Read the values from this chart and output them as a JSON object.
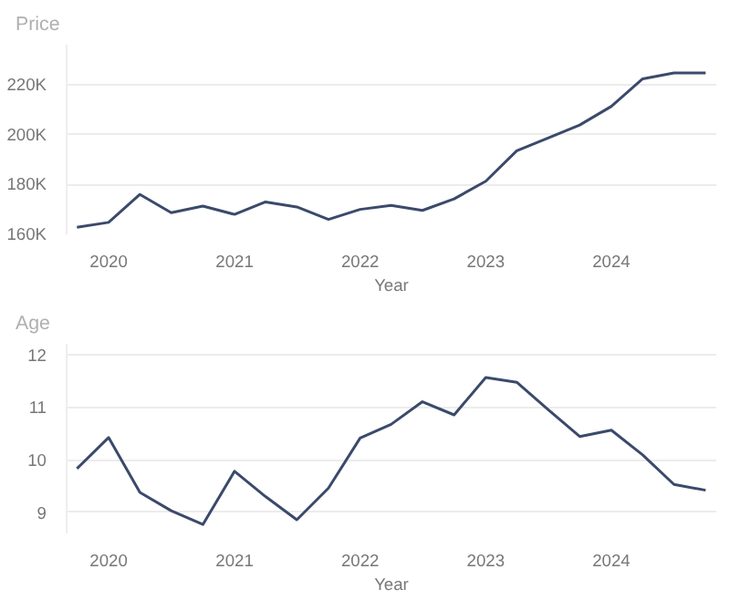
{
  "chart_data": [
    {
      "type": "line",
      "title": "Price",
      "xlabel": "Year",
      "x": [
        "2019-10",
        "2020-01",
        "2020-04",
        "2020-07",
        "2020-10",
        "2021-01",
        "2021-04",
        "2021-07",
        "2021-10",
        "2022-01",
        "2022-04",
        "2022-07",
        "2022-10",
        "2023-01",
        "2023-04",
        "2023-07",
        "2023-10",
        "2024-01",
        "2024-04",
        "2024-07",
        "2024-10"
      ],
      "series": [
        {
          "color": "#3b4a6b",
          "values": [
            162800,
            164800,
            176000,
            168700,
            171300,
            168000,
            173000,
            171000,
            166000,
            170000,
            171600,
            169600,
            174200,
            181300,
            193500,
            198600,
            203800,
            211300,
            222300,
            224700,
            224700
          ]
        }
      ],
      "xlim": [
        "2019-09",
        "2024-11"
      ],
      "xticks": [
        {
          "value": "2020-01",
          "label": "2020"
        },
        {
          "value": "2021-01",
          "label": "2021"
        },
        {
          "value": "2022-01",
          "label": "2022"
        },
        {
          "value": "2023-01",
          "label": "2023"
        },
        {
          "value": "2024-01",
          "label": "2024"
        }
      ],
      "ylim": [
        160000,
        236000
      ],
      "yticks": [
        {
          "value": 160000,
          "label": "160K"
        },
        {
          "value": 180000,
          "label": "180K"
        },
        {
          "value": 200000,
          "label": "200K"
        },
        {
          "value": 220000,
          "label": "220K"
        }
      ],
      "grid": "y",
      "line_style": "solid"
    },
    {
      "type": "line",
      "title": "Age",
      "xlabel": "Year",
      "x": [
        "2019-10",
        "2020-01",
        "2020-04",
        "2020-07",
        "2020-10",
        "2021-01",
        "2021-04",
        "2021-07",
        "2021-10",
        "2022-01",
        "2022-04",
        "2022-07",
        "2022-10",
        "2023-01",
        "2023-04",
        "2023-07",
        "2023-10",
        "2024-01",
        "2024-04",
        "2024-07",
        "2024-10"
      ],
      "series": [
        {
          "color": "#3b4a6b",
          "values": [
            9.83,
            10.42,
            9.38,
            9.03,
            8.77,
            9.78,
            9.3,
            8.86,
            9.46,
            10.41,
            10.67,
            11.1,
            10.85,
            11.56,
            11.47,
            10.95,
            10.44,
            10.56,
            10.09,
            9.53,
            9.42
          ]
        }
      ],
      "xlim": [
        "2019-09",
        "2024-11"
      ],
      "xticks": [
        {
          "value": "2020-01",
          "label": "2020"
        },
        {
          "value": "2021-01",
          "label": "2021"
        },
        {
          "value": "2022-01",
          "label": "2022"
        },
        {
          "value": "2023-01",
          "label": "2023"
        },
        {
          "value": "2024-01",
          "label": "2024"
        }
      ],
      "ylim": [
        8.6,
        12.2
      ],
      "yticks": [
        9,
        10,
        11,
        12
      ],
      "grid": "y",
      "line_style": "solid"
    }
  ]
}
